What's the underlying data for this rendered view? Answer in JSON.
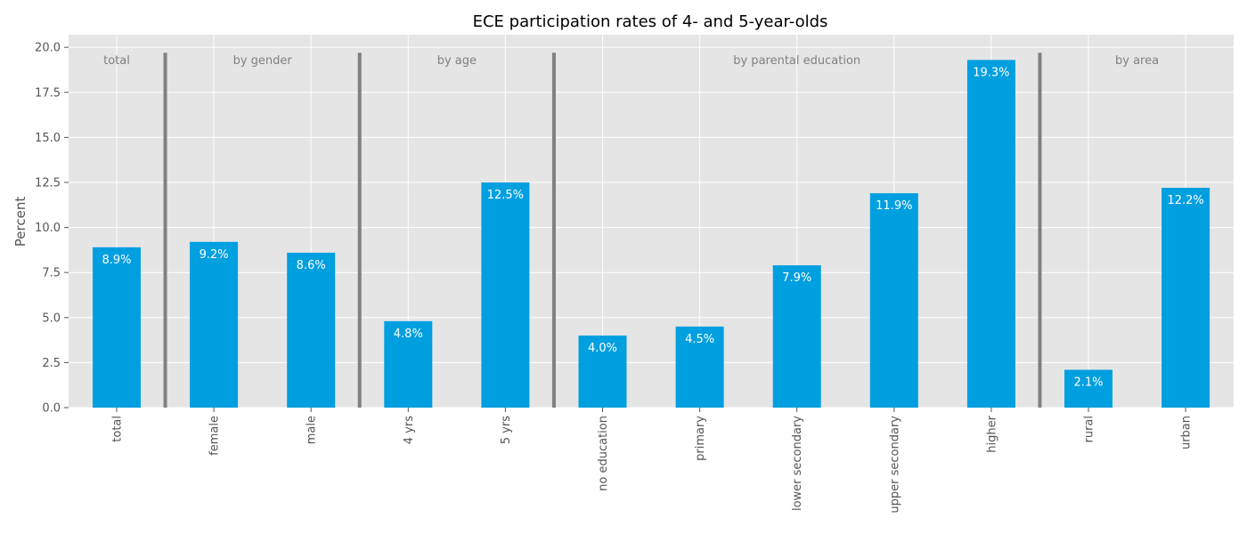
{
  "chart_data": {
    "type": "bar",
    "title": "ECE participation rates of 4- and 5-year-olds",
    "xlabel": "",
    "ylabel": "Percent",
    "ylim": [
      0,
      20.7
    ],
    "yticks": [
      "0.0",
      "2.5",
      "5.0",
      "7.5",
      "10.0",
      "12.5",
      "15.0",
      "17.5",
      "20.0"
    ],
    "ytick_values": [
      0,
      2.5,
      5,
      7.5,
      10,
      12.5,
      15,
      17.5,
      20
    ],
    "grid": true,
    "categories": [
      "total",
      "female",
      "male",
      "4 yrs",
      "5 yrs",
      "no education",
      "primary",
      "lower secondary",
      "upper secondary",
      "higher",
      "rural",
      "urban"
    ],
    "values": [
      8.9,
      9.2,
      8.6,
      4.8,
      12.5,
      4.0,
      4.5,
      7.9,
      11.9,
      19.3,
      2.1,
      12.2
    ],
    "value_labels": [
      "8.9%",
      "9.2%",
      "8.6%",
      "4.8%",
      "12.5%",
      "4.0%",
      "4.5%",
      "7.9%",
      "11.9%",
      "19.3%",
      "2.1%",
      "12.2%"
    ],
    "groups": [
      {
        "label": "total",
        "start": 0,
        "end": 0
      },
      {
        "label": "by gender",
        "start": 1,
        "end": 2
      },
      {
        "label": "by age",
        "start": 3,
        "end": 4
      },
      {
        "label": "by parental education",
        "start": 5,
        "end": 9
      },
      {
        "label": "by area",
        "start": 10,
        "end": 11
      }
    ],
    "separators_after": [
      0,
      2,
      4,
      9
    ],
    "separator_top_value": 19.7,
    "colors": {
      "bar": "#009fe0",
      "background": "#e5e5e5",
      "grid": "#ffffff",
      "separator": "#808080"
    }
  }
}
